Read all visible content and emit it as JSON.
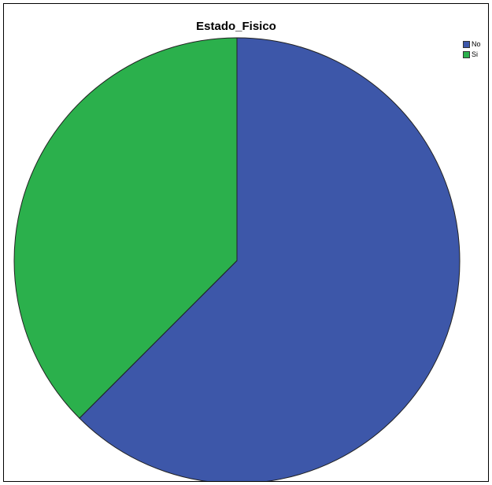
{
  "chart_data": {
    "type": "pie",
    "title": "Estado_Fisico",
    "categories": [
      "No",
      "Si"
    ],
    "values": [
      62.5,
      37.5
    ],
    "colors": [
      "#3d57a9",
      "#2bb04c"
    ],
    "start_angle_deg": 0,
    "direction": "clockwise",
    "legend_position": "top-right"
  }
}
